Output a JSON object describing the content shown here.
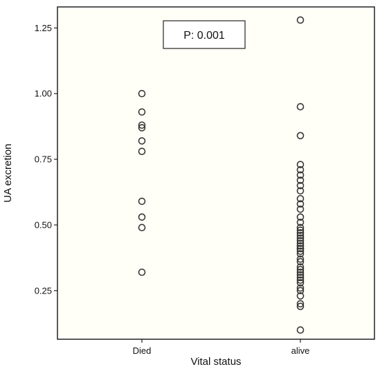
{
  "chart_data": {
    "type": "scatter",
    "xlabel": "Vital status",
    "ylabel": "UA excretion",
    "categories": [
      "Died",
      "alive"
    ],
    "ylim": [
      0.065,
      1.33
    ],
    "yticks": [
      "0.25",
      "0.50",
      "0.75",
      "1.00",
      "1.25"
    ],
    "annotation": "P: 0.001",
    "grid": false,
    "colors": {
      "background": "#fffef7",
      "marker": "#3a3a3a",
      "axis": "#222222"
    },
    "series": [
      {
        "category": "Died",
        "values": [
          1.0,
          0.93,
          0.88,
          0.87,
          0.82,
          0.78,
          0.59,
          0.53,
          0.49,
          0.32
        ]
      },
      {
        "category": "alive",
        "values": [
          1.28,
          0.95,
          0.84,
          0.73,
          0.71,
          0.69,
          0.67,
          0.65,
          0.63,
          0.6,
          0.58,
          0.56,
          0.53,
          0.51,
          0.49,
          0.48,
          0.47,
          0.46,
          0.45,
          0.44,
          0.43,
          0.42,
          0.42,
          0.41,
          0.41,
          0.4,
          0.39,
          0.37,
          0.36,
          0.34,
          0.33,
          0.32,
          0.31,
          0.3,
          0.29,
          0.28,
          0.26,
          0.25,
          0.23,
          0.2,
          0.19,
          0.1
        ]
      }
    ]
  }
}
